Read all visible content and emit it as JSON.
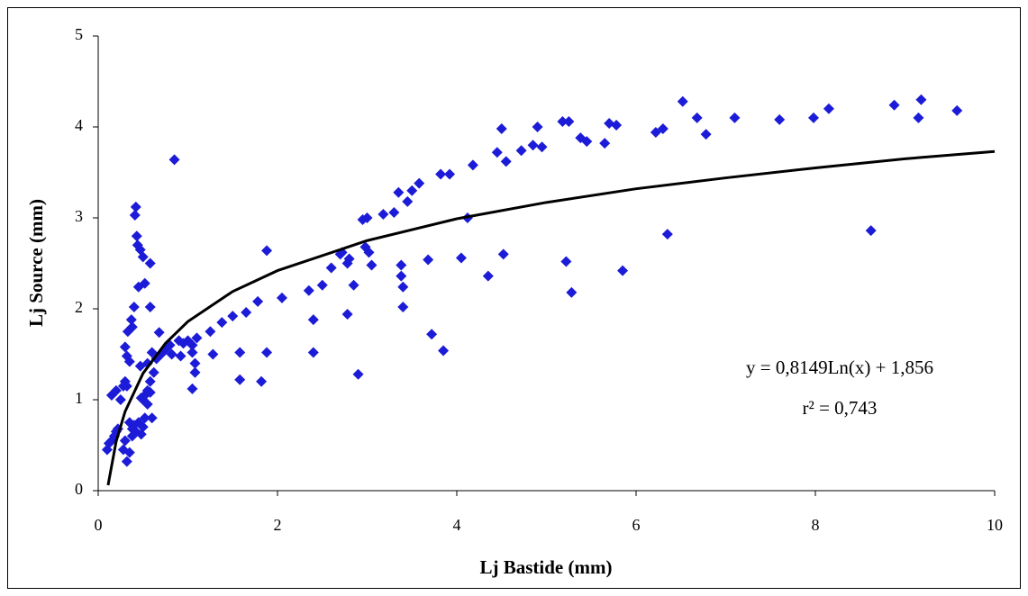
{
  "chart_data": {
    "type": "scatter",
    "x_label": "Lj Bastide (mm)",
    "y_label": "Lj Source (mm)",
    "annotations": [
      "y = 0,8149Ln(x) + 1,856",
      "r² = 0,743"
    ],
    "xlim": [
      0,
      10
    ],
    "xticks": [
      0,
      2,
      4,
      6,
      8,
      10
    ],
    "ylim": [
      0,
      5
    ],
    "yticks": [
      0,
      1,
      2,
      3,
      4,
      5
    ],
    "series": [
      {
        "color": "#1c1cd8",
        "x": [
          0.85,
          0.42,
          0.41,
          0.43,
          0.44,
          0.47,
          0.5,
          0.58,
          0.45,
          0.52,
          0.37,
          0.38,
          0.33,
          0.4,
          0.58,
          0.3,
          0.32,
          0.35,
          0.47,
          0.55,
          0.6,
          0.65,
          0.68,
          0.7,
          0.75,
          0.8,
          0.82,
          0.9,
          0.95,
          0.92,
          1.0,
          1.05,
          1.05,
          1.08,
          1.08,
          1.05,
          1.1,
          1.25,
          1.28,
          1.38,
          1.5,
          1.58,
          1.58,
          1.65,
          1.78,
          1.82,
          1.88,
          1.88,
          2.05,
          2.35,
          2.4,
          2.4,
          2.5,
          2.6,
          2.7,
          2.72,
          2.78,
          2.78,
          2.8,
          2.85,
          2.9,
          2.95,
          2.98,
          3.0,
          3.02,
          3.05,
          3.18,
          3.3,
          3.35,
          3.38,
          3.38,
          3.4,
          3.4,
          3.45,
          3.5,
          3.58,
          3.68,
          3.72,
          3.82,
          3.85,
          3.92,
          4.05,
          4.12,
          4.18,
          4.35,
          4.45,
          4.5,
          4.52,
          4.55,
          4.72,
          4.85,
          4.9,
          4.95,
          5.18,
          5.22,
          5.25,
          5.28,
          5.38,
          5.45,
          5.65,
          5.7,
          5.78,
          5.85,
          6.22,
          6.3,
          6.35,
          6.52,
          6.68,
          6.78,
          7.1,
          7.6,
          7.98,
          8.15,
          8.62,
          8.88,
          9.15,
          9.18,
          9.58,
          0.1,
          0.12,
          0.15,
          0.18,
          0.2,
          0.22,
          0.15,
          0.2,
          0.25,
          0.28,
          0.3,
          0.32,
          0.28,
          0.3,
          0.32,
          0.35,
          0.38,
          0.4,
          0.42,
          0.45,
          0.48,
          0.5,
          0.52,
          0.55,
          0.5,
          0.52,
          0.55,
          0.58,
          0.6,
          0.35,
          0.38,
          0.62,
          0.48,
          0.58
        ],
        "values": [
          3.64,
          3.12,
          3.03,
          2.8,
          2.7,
          2.65,
          2.57,
          2.5,
          2.24,
          2.28,
          1.88,
          1.8,
          1.75,
          2.02,
          2.02,
          1.58,
          1.48,
          1.42,
          1.37,
          1.4,
          1.52,
          1.45,
          1.74,
          1.5,
          1.55,
          1.6,
          1.5,
          1.65,
          1.62,
          1.48,
          1.65,
          1.6,
          1.52,
          1.4,
          1.3,
          1.12,
          1.68,
          1.75,
          1.5,
          1.85,
          1.92,
          1.52,
          1.22,
          1.96,
          2.08,
          1.2,
          1.52,
          2.64,
          2.12,
          2.2,
          1.52,
          1.88,
          2.26,
          2.45,
          2.6,
          2.62,
          2.5,
          1.94,
          2.55,
          2.26,
          1.28,
          2.98,
          2.68,
          3.0,
          2.62,
          2.48,
          3.04,
          3.06,
          3.28,
          2.48,
          2.36,
          2.24,
          2.02,
          3.18,
          3.3,
          3.38,
          2.54,
          1.72,
          3.48,
          1.54,
          3.48,
          2.56,
          3.0,
          3.58,
          2.36,
          3.72,
          3.98,
          2.6,
          3.62,
          3.74,
          3.8,
          4.0,
          3.78,
          4.06,
          2.52,
          4.06,
          2.18,
          3.88,
          3.84,
          3.82,
          4.04,
          4.02,
          2.42,
          3.94,
          3.98,
          2.82,
          4.28,
          4.1,
          3.92,
          4.1,
          4.08,
          4.1,
          4.2,
          2.86,
          4.24,
          4.1,
          4.3,
          4.18,
          0.45,
          0.52,
          0.55,
          0.6,
          0.65,
          0.68,
          1.05,
          1.1,
          1.0,
          1.15,
          1.2,
          1.15,
          0.45,
          0.55,
          0.32,
          0.42,
          0.6,
          0.72,
          0.65,
          0.75,
          0.62,
          0.7,
          0.8,
          0.95,
          1.0,
          1.05,
          1.1,
          1.2,
          0.8,
          0.75,
          0.68,
          1.3,
          1.02,
          1.08
        ]
      }
    ],
    "trendline": {
      "color": "#000000",
      "x": [
        0.11,
        0.2,
        0.3,
        0.5,
        0.75,
        1,
        1.5,
        2,
        3,
        4,
        5,
        6,
        7,
        8,
        9,
        10
      ],
      "values": [
        0.06,
        0.54,
        0.87,
        1.29,
        1.62,
        1.86,
        2.19,
        2.42,
        2.75,
        2.99,
        3.17,
        3.32,
        3.44,
        3.55,
        3.65,
        3.73
      ]
    }
  }
}
